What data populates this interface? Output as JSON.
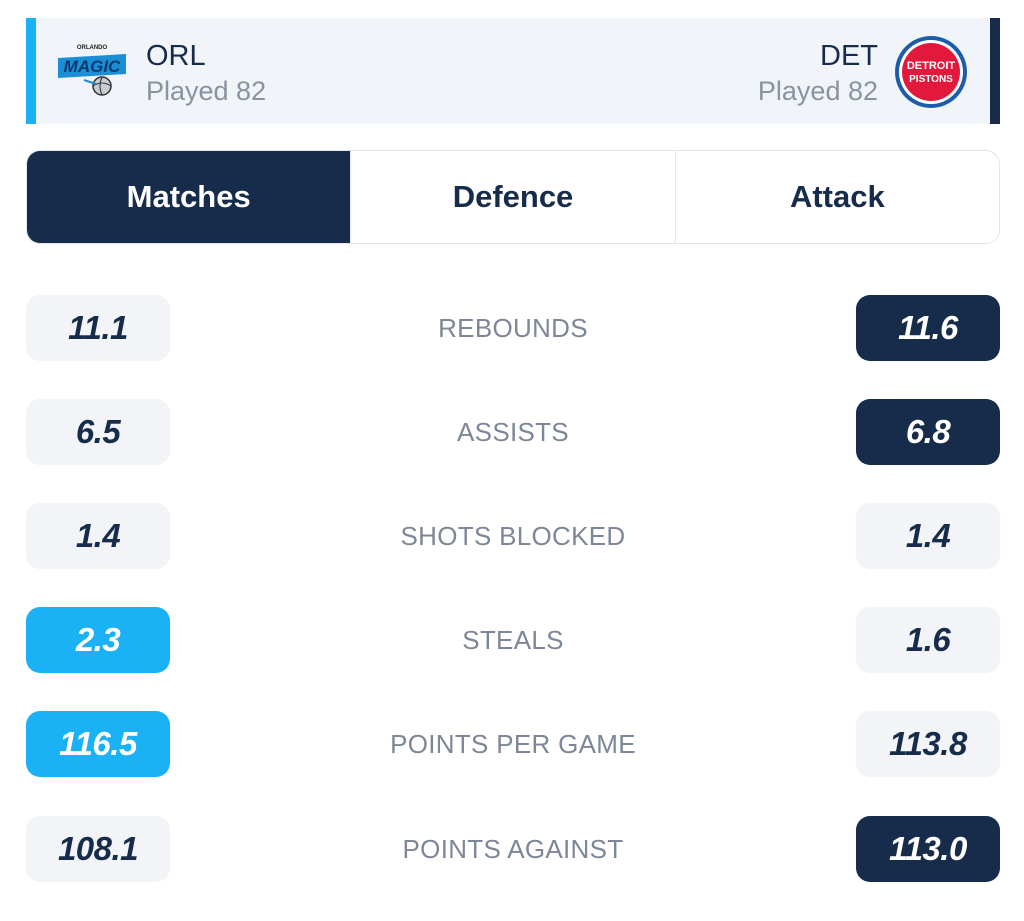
{
  "teams": {
    "home": {
      "abbr": "ORL",
      "played": "Played 82",
      "logo_icon": "orlando-magic-logo",
      "accent": "#1bb1f5"
    },
    "away": {
      "abbr": "DET",
      "played": "Played 82",
      "logo_icon": "detroit-pistons-logo",
      "accent": "#172c4b"
    }
  },
  "tabs": [
    {
      "label": "Matches",
      "active": true
    },
    {
      "label": "Defence",
      "active": false
    },
    {
      "label": "Attack",
      "active": false
    }
  ],
  "stats": [
    {
      "label": "REBOUNDS",
      "home": "11.1",
      "away": "11.6",
      "home_style": "neutral",
      "away_style": "dark"
    },
    {
      "label": "ASSISTS",
      "home": "6.5",
      "away": "6.8",
      "home_style": "neutral",
      "away_style": "dark"
    },
    {
      "label": "SHOTS BLOCKED",
      "home": "1.4",
      "away": "1.4",
      "home_style": "neutral",
      "away_style": "neutral"
    },
    {
      "label": "STEALS",
      "home": "2.3",
      "away": "1.6",
      "home_style": "blue",
      "away_style": "neutral"
    },
    {
      "label": "POINTS PER GAME",
      "home": "116.5",
      "away": "113.8",
      "home_style": "blue",
      "away_style": "neutral"
    },
    {
      "label": "POINTS AGAINST",
      "home": "108.1",
      "away": "113.0",
      "home_style": "neutral",
      "away_style": "dark"
    }
  ],
  "colors": {
    "navy": "#172c4b",
    "blue": "#1bb1f5",
    "neutral_pill": "#f2f4f7",
    "header_bg": "#f1f4f8"
  }
}
